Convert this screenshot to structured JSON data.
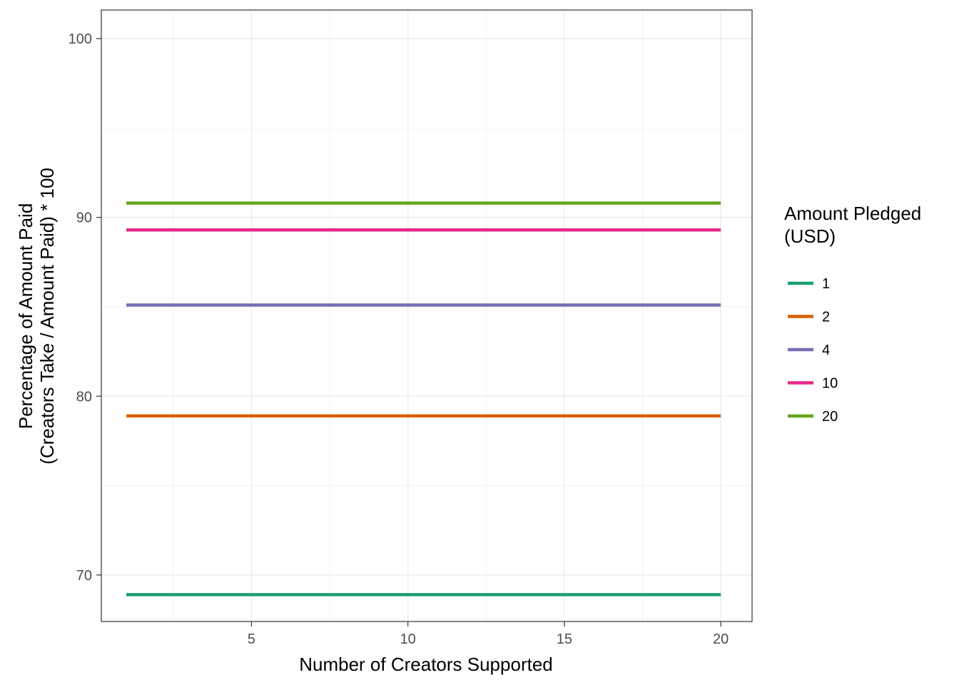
{
  "chart_data": {
    "type": "line",
    "xlabel": "Number of Creators Supported",
    "ylabel_line1": "Percentage of Amount Paid",
    "ylabel_line2": "(Creators Take / Amount Paid) * 100",
    "xlim": [
      0.2,
      21.0
    ],
    "ylim": [
      67.4,
      101.6
    ],
    "x_ticks": [
      5,
      10,
      15,
      20
    ],
    "x_tick_labels": [
      "5",
      "10",
      "15",
      "20"
    ],
    "x_minor_ticks": [
      2.5,
      7.5,
      12.5,
      17.5
    ],
    "y_ticks": [
      70,
      80,
      90,
      100
    ],
    "y_tick_labels": [
      "70",
      "80",
      "90",
      "100"
    ],
    "y_minor_ticks": [
      75,
      85,
      95
    ],
    "grid": true,
    "legend": {
      "title_line1": "Amount Pledged",
      "title_line2": "(USD)",
      "position": "right"
    },
    "series": [
      {
        "name": "1",
        "color": "#1b9e77",
        "x": [
          1,
          20
        ],
        "y": [
          68.9,
          68.9
        ]
      },
      {
        "name": "2",
        "color": "#d95f02",
        "x": [
          1,
          20
        ],
        "y": [
          78.9,
          78.9
        ]
      },
      {
        "name": "4",
        "color": "#7570b3",
        "x": [
          1,
          20
        ],
        "y": [
          85.1,
          85.1
        ]
      },
      {
        "name": "10",
        "color": "#e7298a",
        "x": [
          1,
          20
        ],
        "y": [
          89.3,
          89.3
        ]
      },
      {
        "name": "20",
        "color": "#66a61e",
        "x": [
          1,
          20
        ],
        "y": [
          90.8,
          90.8
        ]
      }
    ]
  }
}
